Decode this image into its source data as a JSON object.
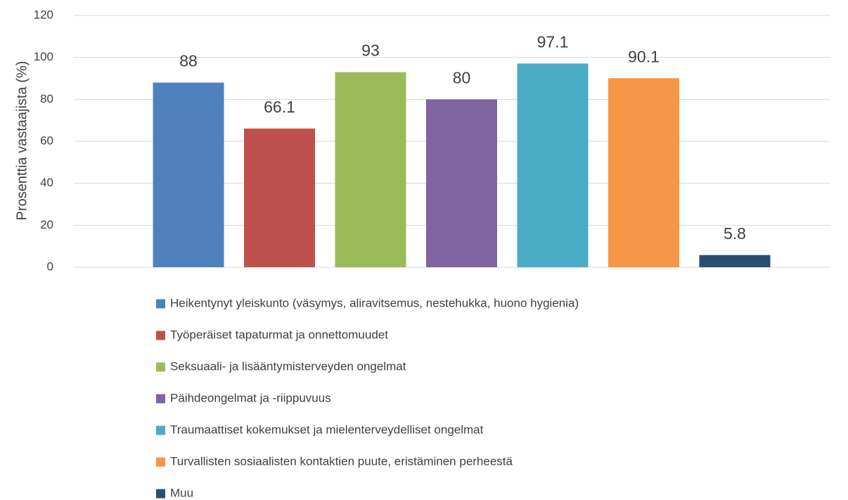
{
  "chart_data": {
    "type": "bar",
    "ylabel": "Prosenttia vastaajista (%)",
    "categories": [
      null
    ],
    "series": [
      {
        "name": "Heikentynyt yleiskunto (väsymys, aliravitsemus, nestehukka, huono hygienia)",
        "color": "#4f81bd",
        "values": [
          88
        ]
      },
      {
        "name": "Työperäiset tapaturmat ja onnettomuudet",
        "color": "#c0504d",
        "values": [
          66.1
        ]
      },
      {
        "name": "Seksuaali- ja lisääntymisterveyden ongelmat",
        "color": "#9bbb59",
        "values": [
          93
        ]
      },
      {
        "name": "Päihdeongelmat ja -riippuvuus",
        "color": "#8064a2",
        "values": [
          80
        ]
      },
      {
        "name": "Traumaattiset kokemukset ja mielenterveydelliset ongelmat",
        "color": "#4bacc6",
        "values": [
          97.1
        ]
      },
      {
        "name": "Turvallisten sosiaalisten kontaktien puute, eristäminen perheestä",
        "color": "#f79646",
        "values": [
          90.1
        ]
      },
      {
        "name": "Muu",
        "color": "#2c4d75",
        "values": [
          5.8
        ]
      }
    ],
    "ylim": [
      0,
      120
    ],
    "yticks": [
      0,
      20,
      40,
      60,
      80,
      100,
      120
    ],
    "grid": true,
    "legend": "bottom"
  }
}
